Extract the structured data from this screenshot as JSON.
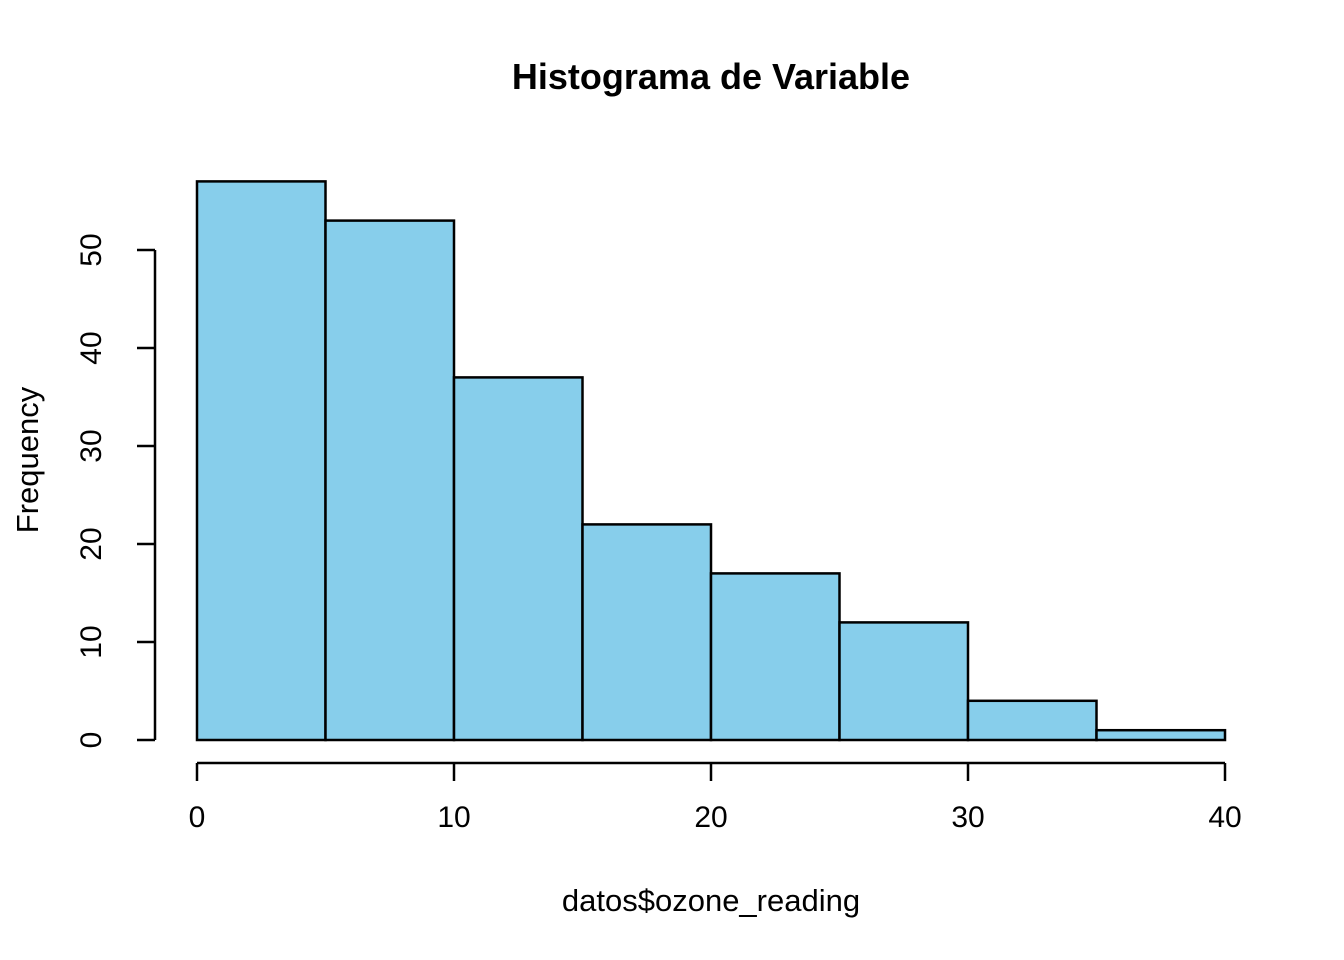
{
  "chart_data": {
    "type": "bar",
    "chart_kind": "histogram",
    "title": "Histograma de Variable",
    "xlabel": "datos$ozone_reading",
    "ylabel": "Frequency",
    "bin_edges": [
      0,
      5,
      10,
      15,
      20,
      25,
      30,
      35,
      40
    ],
    "counts": [
      57,
      53,
      37,
      22,
      17,
      12,
      4,
      1
    ],
    "x_ticks": [
      0,
      10,
      20,
      30,
      40
    ],
    "y_ticks": [
      0,
      10,
      20,
      30,
      40,
      50
    ],
    "xlim": [
      0,
      40
    ],
    "ylim": [
      0,
      57
    ],
    "grid": "off",
    "legend": "none",
    "bar_fill": "#87CEEB",
    "bar_stroke": "#000000",
    "background": "#FFFFFF"
  }
}
